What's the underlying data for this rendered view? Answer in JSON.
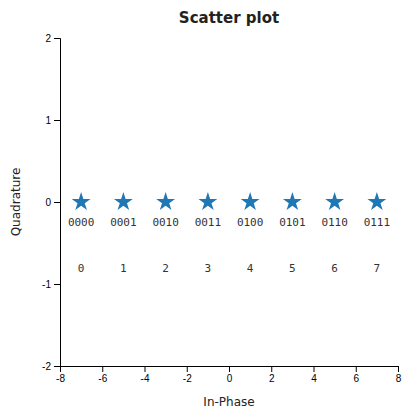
{
  "chart_data": {
    "type": "scatter",
    "title": "Scatter plot",
    "x_label": "In-Phase",
    "y_label": "Quadrature",
    "x": [
      -7,
      -5,
      -3,
      -1,
      1,
      3,
      5,
      7
    ],
    "values": [
      0,
      0,
      0,
      0,
      0,
      0,
      0,
      0
    ],
    "marker": "star",
    "xlim": [
      -8,
      8
    ],
    "ylim": [
      -2,
      2
    ],
    "xticks": [
      -8,
      -6,
      -4,
      -2,
      0,
      2,
      4,
      6,
      8
    ],
    "yticks": [
      -2,
      -1,
      0,
      1,
      2
    ],
    "grid": false,
    "annotations": [
      {
        "text": "0000",
        "x": -7,
        "y": -0.2
      },
      {
        "text": "0001",
        "x": -5,
        "y": -0.2
      },
      {
        "text": "0010",
        "x": -3,
        "y": -0.2
      },
      {
        "text": "0011",
        "x": -1,
        "y": -0.2
      },
      {
        "text": "0100",
        "x": 1,
        "y": -0.2
      },
      {
        "text": "0101",
        "x": 3,
        "y": -0.2
      },
      {
        "text": "0110",
        "x": 5,
        "y": -0.2
      },
      {
        "text": "0111",
        "x": 7,
        "y": -0.2
      },
      {
        "text": "0",
        "x": -7,
        "y": -0.75
      },
      {
        "text": "1",
        "x": -5,
        "y": -0.75
      },
      {
        "text": "2",
        "x": -3,
        "y": -0.75
      },
      {
        "text": "3",
        "x": -1,
        "y": -0.75
      },
      {
        "text": "4",
        "x": 1,
        "y": -0.75
      },
      {
        "text": "5",
        "x": 3,
        "y": -0.75
      },
      {
        "text": "6",
        "x": 5,
        "y": -0.75
      },
      {
        "text": "7",
        "x": 7,
        "y": -0.75
      }
    ]
  }
}
